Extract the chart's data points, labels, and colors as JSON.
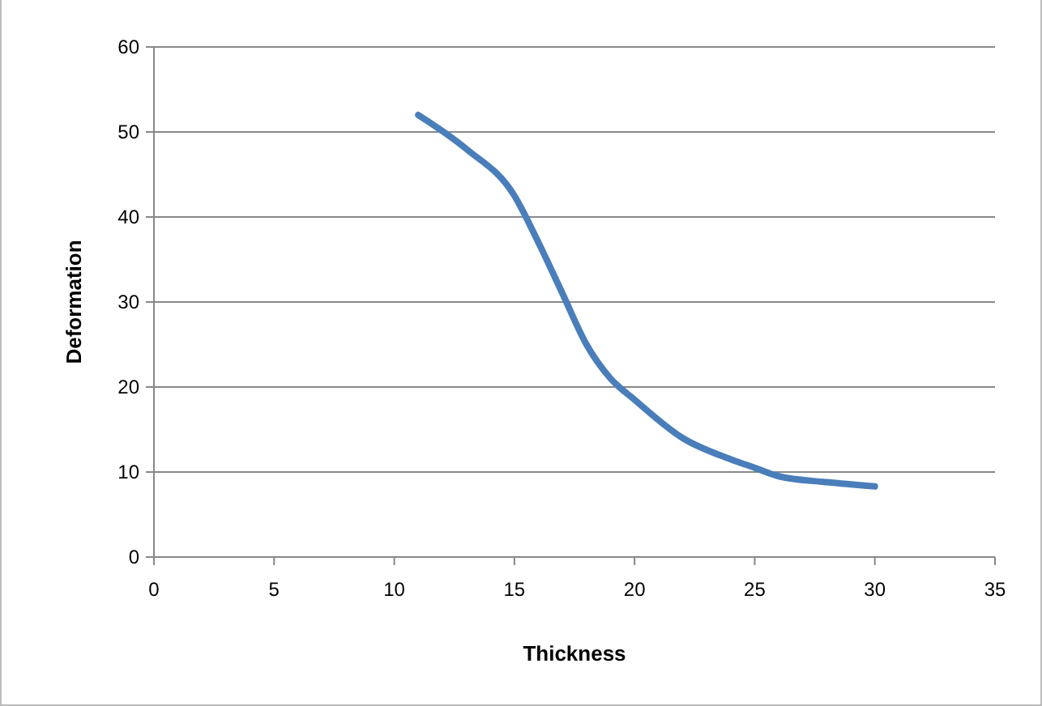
{
  "chart_data": {
    "type": "line",
    "xlabel": "Thickness",
    "ylabel": "Deformation",
    "xlim": [
      0,
      35
    ],
    "xticks": [
      0,
      5,
      10,
      15,
      20,
      25,
      30,
      35
    ],
    "ylim": [
      0,
      60
    ],
    "yticks": [
      0,
      10,
      20,
      30,
      40,
      50,
      60
    ],
    "grid": "y",
    "marker": "none",
    "line_style": "solid",
    "series": [
      {
        "color": "#4a7ebb",
        "x": [
          11,
          13,
          15,
          16,
          17,
          18,
          19,
          20,
          22,
          24,
          25,
          26,
          28,
          30
        ],
        "values": [
          52,
          48,
          42.5,
          37,
          31,
          25,
          21,
          18.5,
          14,
          11.5,
          10.5,
          9.5,
          8.8,
          8.3
        ]
      }
    ]
  }
}
